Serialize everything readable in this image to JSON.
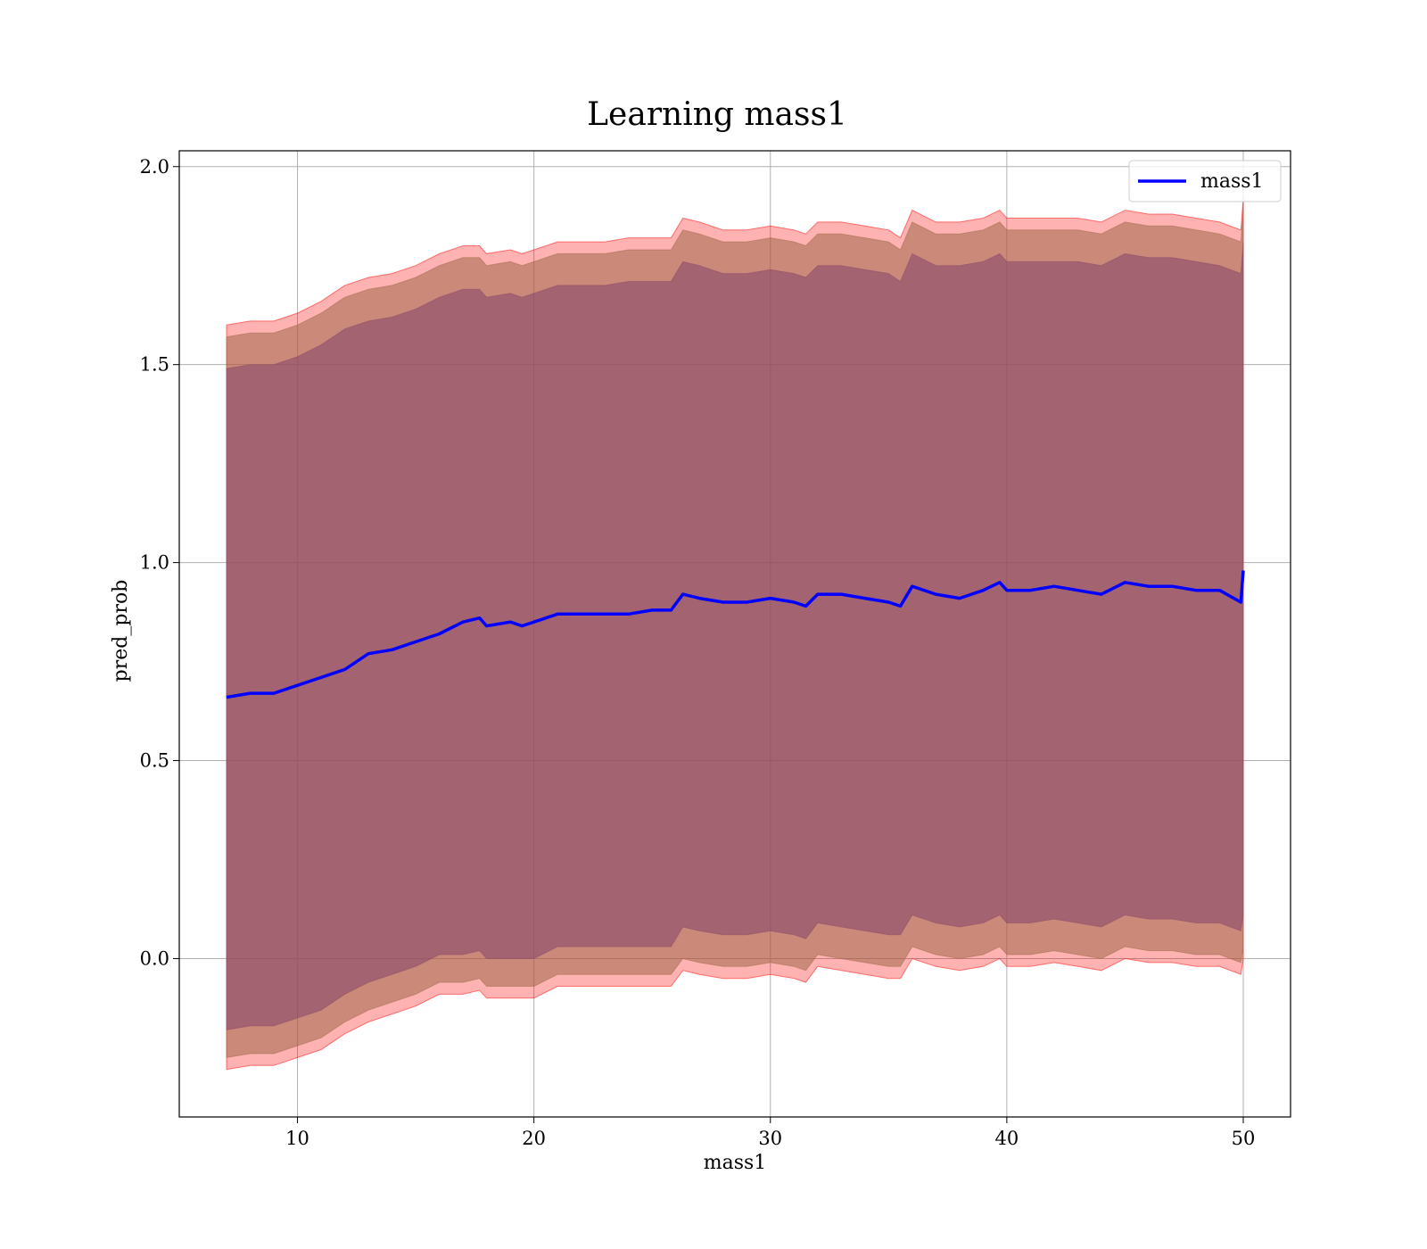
{
  "chart_data": {
    "type": "line",
    "title": "Learning mass1",
    "xlabel": "mass1",
    "ylabel": "pred_prob",
    "xlim": [
      5,
      52
    ],
    "ylim": [
      -0.4,
      2.04
    ],
    "xticks": [
      10,
      20,
      30,
      40,
      50
    ],
    "yticks": [
      0.0,
      0.5,
      1.0,
      1.5,
      2.0
    ],
    "xtick_labels": [
      "10",
      "20",
      "30",
      "40",
      "50"
    ],
    "ytick_labels": [
      "0.0",
      "0.5",
      "1.0",
      "1.5",
      "2.0"
    ],
    "grid": true,
    "legend": {
      "position": "upper right",
      "entries": [
        "mass1"
      ]
    },
    "x": [
      7,
      8,
      9,
      10,
      11,
      12,
      13,
      14,
      15,
      16,
      17,
      17.7,
      18,
      19,
      19.5,
      20,
      21,
      22,
      23,
      24,
      25,
      25.8,
      26.3,
      27,
      28,
      29,
      30,
      31,
      31.5,
      32,
      33,
      34,
      35,
      35.5,
      36,
      37,
      38,
      39,
      39.7,
      40,
      41,
      42,
      43,
      44,
      45,
      46,
      47,
      48,
      49,
      49.9,
      50
    ],
    "series": [
      {
        "name": "mass1",
        "color": "#0000ff",
        "values": [
          0.66,
          0.67,
          0.67,
          0.69,
          0.71,
          0.73,
          0.77,
          0.78,
          0.8,
          0.82,
          0.85,
          0.86,
          0.84,
          0.85,
          0.84,
          0.85,
          0.87,
          0.87,
          0.87,
          0.87,
          0.88,
          0.88,
          0.92,
          0.91,
          0.9,
          0.9,
          0.91,
          0.9,
          0.89,
          0.92,
          0.92,
          0.91,
          0.9,
          0.89,
          0.94,
          0.92,
          0.91,
          0.93,
          0.95,
          0.93,
          0.93,
          0.94,
          0.93,
          0.92,
          0.95,
          0.94,
          0.94,
          0.93,
          0.93,
          0.9,
          0.98
        ]
      },
      {
        "band": "outer",
        "color": "#ff0000",
        "opacity": 0.3,
        "upper": [
          1.6,
          1.61,
          1.61,
          1.63,
          1.66,
          1.7,
          1.72,
          1.73,
          1.75,
          1.78,
          1.8,
          1.8,
          1.78,
          1.79,
          1.78,
          1.79,
          1.81,
          1.81,
          1.81,
          1.82,
          1.82,
          1.82,
          1.87,
          1.86,
          1.84,
          1.84,
          1.85,
          1.84,
          1.83,
          1.86,
          1.86,
          1.85,
          1.84,
          1.82,
          1.89,
          1.86,
          1.86,
          1.87,
          1.89,
          1.87,
          1.87,
          1.87,
          1.87,
          1.86,
          1.89,
          1.88,
          1.88,
          1.87,
          1.86,
          1.84,
          1.92
        ],
        "lower": [
          -0.28,
          -0.27,
          -0.27,
          -0.25,
          -0.23,
          -0.19,
          -0.16,
          -0.14,
          -0.12,
          -0.09,
          -0.09,
          -0.08,
          -0.1,
          -0.1,
          -0.1,
          -0.1,
          -0.07,
          -0.07,
          -0.07,
          -0.07,
          -0.07,
          -0.07,
          -0.03,
          -0.04,
          -0.05,
          -0.05,
          -0.04,
          -0.05,
          -0.06,
          -0.02,
          -0.03,
          -0.04,
          -0.05,
          -0.05,
          0.0,
          -0.02,
          -0.03,
          -0.02,
          0.0,
          -0.02,
          -0.02,
          -0.01,
          -0.02,
          -0.03,
          0.0,
          -0.01,
          -0.01,
          -0.02,
          -0.02,
          -0.04,
          0.0
        ]
      },
      {
        "band": "middle",
        "color": "#a06a4a",
        "opacity": 0.55,
        "upper": [
          1.57,
          1.58,
          1.58,
          1.6,
          1.63,
          1.67,
          1.69,
          1.7,
          1.72,
          1.75,
          1.77,
          1.77,
          1.75,
          1.76,
          1.75,
          1.76,
          1.78,
          1.78,
          1.78,
          1.79,
          1.79,
          1.79,
          1.84,
          1.83,
          1.81,
          1.81,
          1.82,
          1.81,
          1.8,
          1.83,
          1.83,
          1.82,
          1.81,
          1.79,
          1.86,
          1.83,
          1.83,
          1.84,
          1.86,
          1.84,
          1.84,
          1.84,
          1.84,
          1.83,
          1.86,
          1.85,
          1.85,
          1.84,
          1.83,
          1.81,
          1.89
        ],
        "lower": [
          -0.25,
          -0.24,
          -0.24,
          -0.22,
          -0.2,
          -0.16,
          -0.13,
          -0.11,
          -0.09,
          -0.06,
          -0.06,
          -0.05,
          -0.07,
          -0.07,
          -0.07,
          -0.07,
          -0.04,
          -0.04,
          -0.04,
          -0.04,
          -0.04,
          -0.04,
          0.0,
          -0.01,
          -0.02,
          -0.02,
          -0.01,
          -0.02,
          -0.03,
          0.01,
          0.0,
          -0.01,
          -0.02,
          -0.02,
          0.03,
          0.01,
          0.0,
          0.01,
          0.03,
          0.01,
          0.01,
          0.02,
          0.01,
          0.0,
          0.03,
          0.02,
          0.02,
          0.01,
          0.01,
          -0.01,
          0.03
        ]
      },
      {
        "band": "inner",
        "color": "#8b4a6a",
        "opacity": 0.6,
        "upper": [
          1.49,
          1.5,
          1.5,
          1.52,
          1.55,
          1.59,
          1.61,
          1.62,
          1.64,
          1.67,
          1.69,
          1.69,
          1.67,
          1.68,
          1.67,
          1.68,
          1.7,
          1.7,
          1.7,
          1.71,
          1.71,
          1.71,
          1.76,
          1.75,
          1.73,
          1.73,
          1.74,
          1.73,
          1.72,
          1.75,
          1.75,
          1.74,
          1.73,
          1.71,
          1.78,
          1.75,
          1.75,
          1.76,
          1.78,
          1.76,
          1.76,
          1.76,
          1.76,
          1.75,
          1.78,
          1.77,
          1.77,
          1.76,
          1.75,
          1.73,
          1.81
        ],
        "lower": [
          -0.18,
          -0.17,
          -0.17,
          -0.15,
          -0.13,
          -0.09,
          -0.06,
          -0.04,
          -0.02,
          0.01,
          0.01,
          0.02,
          0.0,
          0.0,
          0.0,
          0.0,
          0.03,
          0.03,
          0.03,
          0.03,
          0.03,
          0.03,
          0.08,
          0.07,
          0.06,
          0.06,
          0.07,
          0.06,
          0.05,
          0.09,
          0.08,
          0.07,
          0.06,
          0.06,
          0.11,
          0.09,
          0.08,
          0.09,
          0.11,
          0.09,
          0.09,
          0.1,
          0.09,
          0.08,
          0.11,
          0.1,
          0.1,
          0.09,
          0.09,
          0.07,
          0.11
        ]
      }
    ]
  }
}
